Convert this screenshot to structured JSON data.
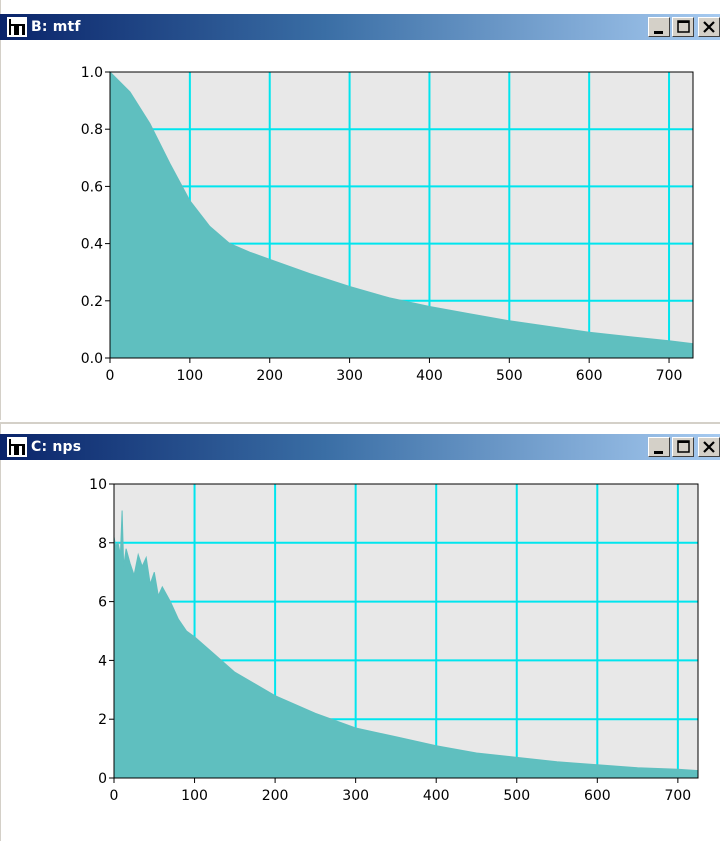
{
  "windows": [
    {
      "title": "B: mtf",
      "controls": [
        "minimize",
        "maximize",
        "close"
      ],
      "chart_data": {
        "type": "area",
        "title": "",
        "xlabel": "",
        "ylabel": "",
        "xlim": [
          0,
          730
        ],
        "ylim": [
          0,
          1.0
        ],
        "x_ticks": [
          "0",
          "100",
          "200",
          "300",
          "400",
          "500",
          "600",
          "700"
        ],
        "y_ticks": [
          "0.0",
          "0.2",
          "0.4",
          "0.6",
          "0.8",
          "1.0"
        ],
        "grid": true,
        "colors": {
          "fill": "#5fbfbf",
          "grid": "#00e5ee",
          "plot_bg": "#e8e8e8"
        },
        "series": [
          {
            "x": [
              0,
              25,
              50,
              75,
              100,
              125,
              150,
              175,
              200,
              250,
              300,
              350,
              400,
              450,
              500,
              550,
              600,
              650,
              700,
              730
            ],
            "y": [
              1.0,
              0.93,
              0.82,
              0.68,
              0.55,
              0.46,
              0.4,
              0.37,
              0.345,
              0.295,
              0.25,
              0.21,
              0.18,
              0.155,
              0.13,
              0.11,
              0.09,
              0.075,
              0.06,
              0.05
            ]
          }
        ]
      }
    },
    {
      "title": "C: nps",
      "controls": [
        "minimize",
        "maximize",
        "close"
      ],
      "chart_data": {
        "type": "area",
        "title": "",
        "xlabel": "",
        "ylabel": "",
        "xlim": [
          0,
          725
        ],
        "ylim": [
          0,
          10
        ],
        "x_ticks": [
          "0",
          "100",
          "200",
          "300",
          "400",
          "500",
          "600",
          "700"
        ],
        "y_ticks": [
          "0",
          "2",
          "4",
          "6",
          "8",
          "10"
        ],
        "grid": true,
        "colors": {
          "fill": "#5fbfbf",
          "grid": "#00e5ee",
          "plot_bg": "#e8e8e8"
        },
        "series": [
          {
            "x": [
              0,
              2,
              5,
              8,
              10,
              12,
              15,
              20,
              25,
              30,
              35,
              40,
              45,
              50,
              55,
              60,
              70,
              80,
              90,
              100,
              125,
              150,
              175,
              200,
              250,
              300,
              350,
              400,
              450,
              500,
              550,
              600,
              650,
              700,
              725
            ],
            "y": [
              8.2,
              7.9,
              8.0,
              7.6,
              9.1,
              7.2,
              7.8,
              7.3,
              6.9,
              7.6,
              7.2,
              7.5,
              6.6,
              7.0,
              6.2,
              6.5,
              6.0,
              5.4,
              5.0,
              4.8,
              4.2,
              3.6,
              3.2,
              2.8,
              2.2,
              1.7,
              1.4,
              1.1,
              0.85,
              0.7,
              0.55,
              0.45,
              0.35,
              0.3,
              0.25
            ]
          }
        ]
      }
    }
  ]
}
